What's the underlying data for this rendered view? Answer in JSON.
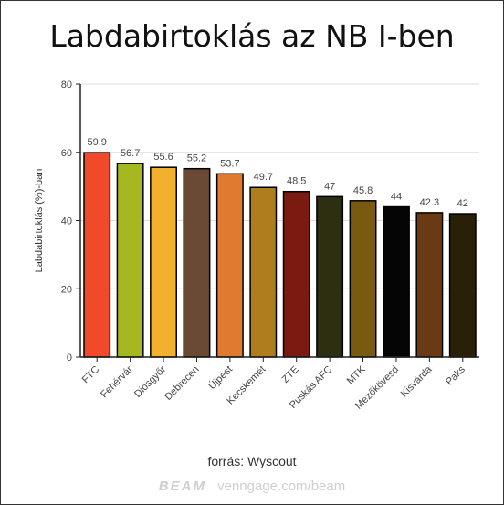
{
  "chart_data": {
    "type": "bar",
    "title": "Labdabirtoklás az NB I-ben",
    "ylabel": "Labdabirtoklás (%)-ban",
    "xlabel": "",
    "ylim": [
      0,
      80
    ],
    "yticks": [
      "0",
      "20",
      "40",
      "60",
      "80"
    ],
    "grid": true,
    "categories": [
      "FTC",
      "Fehérvár",
      "Diósgyőr",
      "Debrecen",
      "Újpest",
      "Kecskemét",
      "ZTE",
      "Puskás AFC",
      "MTK",
      "Mezőkövesd",
      "Kisvárda",
      "Paks"
    ],
    "values": [
      59.9,
      56.7,
      55.6,
      55.2,
      53.7,
      49.7,
      48.5,
      47,
      45.8,
      44,
      42.3,
      42
    ],
    "value_labels": [
      "59.9",
      "56.7",
      "55.6",
      "55.2",
      "53.7",
      "49.7",
      "48.5",
      "47",
      "45.8",
      "44",
      "42.3",
      "42"
    ],
    "colors": [
      "#f04a2a",
      "#a6b820",
      "#f2b02e",
      "#6b4a35",
      "#e07a30",
      "#b07d1e",
      "#7a1a10",
      "#2e2e12",
      "#7a5a10",
      "#050505",
      "#6a3a15",
      "#2a2008"
    ]
  },
  "footer": {
    "source": "forrás: Wyscout",
    "watermark_brand": "BEAM",
    "watermark_url": "venngage.com/beam"
  }
}
